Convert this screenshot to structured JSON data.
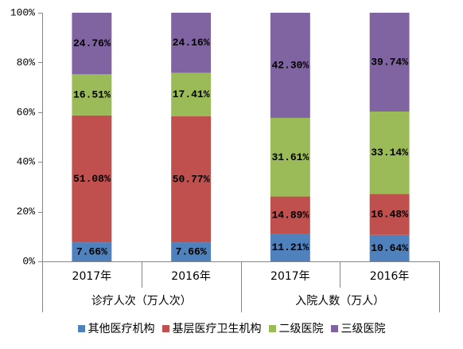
{
  "chart_data": {
    "type": "bar",
    "stacked": "percent",
    "categories": [
      "2017年",
      "2016年",
      "2017年",
      "2016年"
    ],
    "groups": [
      {
        "label": "诊疗人次（万人次）",
        "category_indices": [
          0,
          1
        ]
      },
      {
        "label": "入院人数（万人）",
        "category_indices": [
          2,
          3
        ]
      }
    ],
    "series": [
      {
        "name": "其他医疗机构",
        "color": "#4F81BD",
        "values": [
          7.66,
          7.66,
          11.21,
          10.64
        ],
        "labels": [
          "7.66%",
          "7.66%",
          "11.21%",
          "10.64%"
        ]
      },
      {
        "name": "基层医疗卫生机构",
        "color": "#C0504D",
        "values": [
          51.08,
          50.77,
          14.89,
          16.48
        ],
        "labels": [
          "51.08%",
          "50.77%",
          "14.89%",
          "16.48%"
        ]
      },
      {
        "name": "二级医院",
        "color": "#9BBB59",
        "values": [
          16.51,
          17.41,
          31.61,
          33.14
        ],
        "labels": [
          "16.51%",
          "17.41%",
          "31.61%",
          "33.14%"
        ]
      },
      {
        "name": "三级医院",
        "color": "#8064A2",
        "values": [
          24.76,
          24.16,
          42.3,
          39.74
        ],
        "labels": [
          "24.76%",
          "24.16%",
          "42.30%",
          "39.74%"
        ]
      }
    ],
    "ylim": [
      0,
      100
    ],
    "yticks": [
      0,
      20,
      40,
      60,
      80,
      100
    ],
    "ytick_labels": [
      "0%",
      "20%",
      "40%",
      "60%",
      "80%",
      "100%"
    ],
    "grid": false,
    "legend_position": "bottom"
  }
}
